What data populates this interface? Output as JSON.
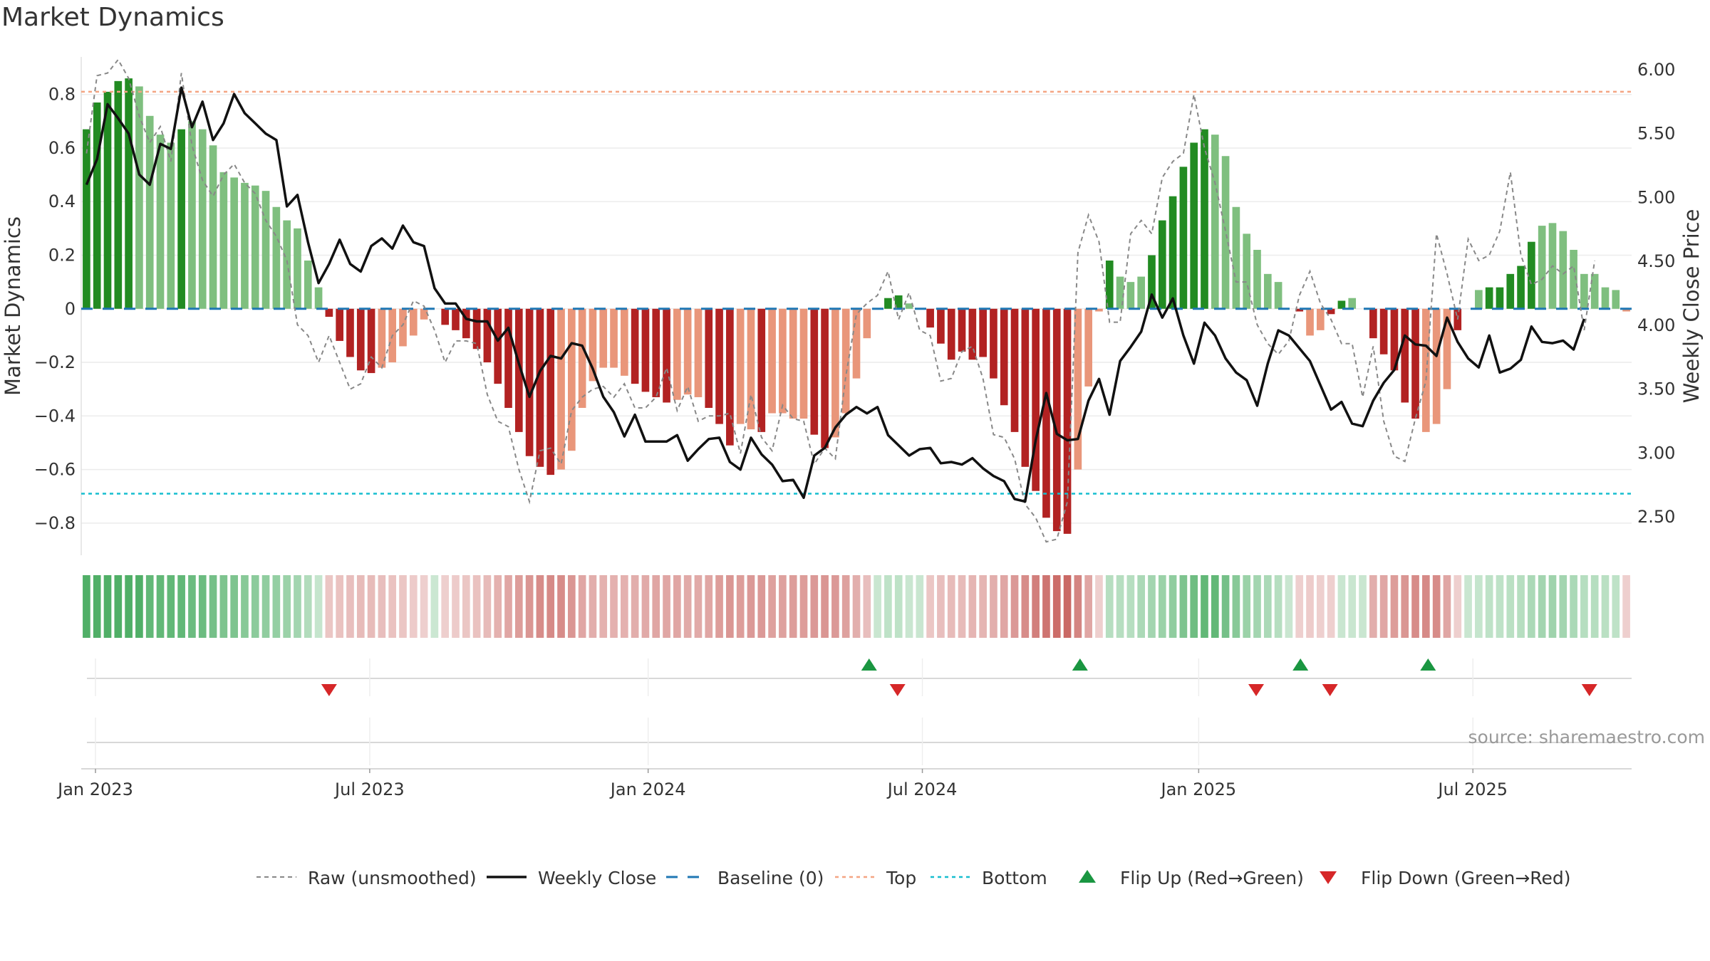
{
  "title": "Market Dynamics",
  "source_note": "source: sharemaestro.com",
  "colors": {
    "strong_green": "#228b22",
    "light_green": "#7fbf7f",
    "strong_red": "#b22222",
    "light_red": "#e9967a",
    "close_line": "#111111",
    "raw_line": "#888888",
    "baseline": "#1f77b4",
    "top_line": "#f4a582",
    "bottom_line": "#17becf",
    "flip_up": "#1a9641",
    "flip_down": "#d62728"
  },
  "chart_data": {
    "type": "bar+line",
    "title": "Market Dynamics",
    "frequency": "weekly",
    "start_week": "2023-01-02",
    "left_axis": {
      "label": "Market Dynamics",
      "ticks": [
        "0.8",
        "0.6",
        "0.4",
        "0.2",
        "0",
        "−0.2",
        "−0.4",
        "−0.6",
        "−0.8"
      ],
      "tick_values": [
        0.8,
        0.6,
        0.4,
        0.2,
        0,
        -0.2,
        -0.4,
        -0.6,
        -0.8
      ],
      "ylim": [
        -0.92,
        0.94
      ]
    },
    "right_axis": {
      "label": "Weekly Close Price",
      "ticks": [
        "6.00",
        "5.50",
        "5.00",
        "4.50",
        "4.00",
        "3.50",
        "3.00",
        "2.50"
      ],
      "tick_values": [
        6.0,
        5.5,
        5.0,
        4.5,
        4.0,
        3.5,
        3.0,
        2.5
      ],
      "ylim": [
        2.2,
        6.1
      ]
    },
    "x_axis": {
      "ticks": [
        "Jan 2023",
        "Jul 2023",
        "Jan 2024",
        "Jul 2024",
        "Jan 2025",
        "Jul 2025"
      ],
      "tick_weeks": [
        0,
        26,
        52.4,
        78.4,
        104.6,
        130.6
      ]
    },
    "reference_lines": {
      "baseline": 0,
      "top": 0.81,
      "bottom": -0.69
    },
    "dynamics": [
      0.67,
      0.77,
      0.81,
      0.85,
      0.86,
      0.83,
      0.72,
      0.65,
      0.62,
      0.67,
      0.7,
      0.67,
      0.61,
      0.51,
      0.49,
      0.47,
      0.46,
      0.44,
      0.38,
      0.33,
      0.3,
      0.18,
      0.08,
      -0.03,
      -0.12,
      -0.18,
      -0.23,
      -0.24,
      -0.22,
      -0.2,
      -0.14,
      -0.1,
      -0.04,
      0,
      -0.06,
      -0.08,
      -0.11,
      -0.15,
      -0.2,
      -0.28,
      -0.37,
      -0.46,
      -0.55,
      -0.59,
      -0.62,
      -0.6,
      -0.53,
      -0.37,
      -0.27,
      -0.22,
      -0.22,
      -0.25,
      -0.28,
      -0.31,
      -0.33,
      -0.35,
      -0.34,
      -0.32,
      -0.33,
      -0.37,
      -0.43,
      -0.51,
      -0.43,
      -0.45,
      -0.46,
      -0.39,
      -0.39,
      -0.41,
      -0.41,
      -0.47,
      -0.52,
      -0.48,
      -0.39,
      -0.26,
      -0.11,
      0,
      0.04,
      0.05,
      0.02,
      0,
      -0.07,
      -0.13,
      -0.19,
      -0.16,
      -0.19,
      -0.18,
      -0.26,
      -0.36,
      -0.46,
      -0.59,
      -0.68,
      -0.78,
      -0.83,
      -0.84,
      -0.6,
      -0.29,
      -0.01,
      0.18,
      0.12,
      0.1,
      0.12,
      0.2,
      0.33,
      0.42,
      0.53,
      0.62,
      0.67,
      0.65,
      0.57,
      0.38,
      0.28,
      0.22,
      0.13,
      0.1,
      0,
      -0.01,
      -0.1,
      -0.08,
      -0.02,
      0.03,
      0.04,
      0,
      -0.11,
      -0.17,
      -0.23,
      -0.35,
      -0.41,
      -0.46,
      -0.43,
      -0.3,
      -0.08,
      0,
      0.07,
      0.08,
      0.08,
      0.13,
      0.16,
      0.25,
      0.31,
      0.32,
      0.29,
      0.22,
      0.13,
      0.13,
      0.08,
      0.07,
      -0.01
    ],
    "strength": [
      2,
      2,
      2,
      2,
      2,
      1,
      1,
      1,
      1,
      2,
      1,
      1,
      1,
      1,
      1,
      1,
      1,
      1,
      1,
      1,
      1,
      1,
      1,
      2,
      2,
      2,
      2,
      2,
      1,
      1,
      1,
      1,
      1,
      1,
      2,
      2,
      2,
      2,
      2,
      2,
      2,
      2,
      2,
      2,
      2,
      1,
      1,
      1,
      1,
      1,
      1,
      1,
      2,
      2,
      2,
      2,
      1,
      1,
      1,
      2,
      2,
      2,
      1,
      1,
      2,
      1,
      1,
      1,
      1,
      2,
      2,
      1,
      1,
      1,
      1,
      1,
      2,
      2,
      1,
      1,
      2,
      2,
      2,
      2,
      2,
      2,
      2,
      2,
      2,
      2,
      2,
      2,
      2,
      2,
      1,
      1,
      1,
      2,
      1,
      1,
      1,
      2,
      2,
      2,
      2,
      2,
      2,
      1,
      1,
      1,
      1,
      1,
      1,
      1,
      1,
      2,
      1,
      1,
      2,
      2,
      1,
      2,
      2,
      2,
      2,
      2,
      2,
      1,
      1,
      1,
      2,
      2,
      1,
      2,
      2,
      2,
      2,
      2,
      1,
      1,
      1,
      1,
      1,
      1,
      1,
      1,
      1
    ],
    "regime_intensity": [
      0.95,
      0.95,
      0.95,
      0.95,
      0.95,
      0.95,
      0.85,
      0.85,
      0.85,
      0.85,
      0.8,
      0.8,
      0.75,
      0.7,
      0.7,
      0.65,
      0.62,
      0.6,
      0.58,
      0.55,
      0.5,
      0.42,
      0.32,
      0.35,
      0.38,
      0.4,
      0.42,
      0.42,
      0.4,
      0.38,
      0.35,
      0.32,
      0.3,
      0.28,
      0.3,
      0.32,
      0.35,
      0.38,
      0.42,
      0.48,
      0.55,
      0.6,
      0.65,
      0.7,
      0.72,
      0.7,
      0.65,
      0.55,
      0.5,
      0.48,
      0.48,
      0.48,
      0.5,
      0.52,
      0.55,
      0.55,
      0.55,
      0.52,
      0.52,
      0.55,
      0.6,
      0.65,
      0.6,
      0.62,
      0.62,
      0.58,
      0.58,
      0.6,
      0.6,
      0.62,
      0.65,
      0.62,
      0.58,
      0.5,
      0.4,
      0.3,
      0.35,
      0.35,
      0.3,
      0.3,
      0.35,
      0.4,
      0.42,
      0.42,
      0.45,
      0.45,
      0.5,
      0.55,
      0.62,
      0.7,
      0.78,
      0.85,
      0.9,
      0.92,
      0.75,
      0.55,
      0.3,
      0.4,
      0.4,
      0.4,
      0.45,
      0.5,
      0.55,
      0.6,
      0.7,
      0.78,
      0.85,
      0.85,
      0.75,
      0.65,
      0.55,
      0.5,
      0.45,
      0.4,
      0.3,
      0.3,
      0.32,
      0.3,
      0.3,
      0.3,
      0.3,
      0.3,
      0.5,
      0.55,
      0.6,
      0.65,
      0.7,
      0.72,
      0.7,
      0.55,
      0.3,
      0.3,
      0.32,
      0.35,
      0.35,
      0.38,
      0.4,
      0.45,
      0.5,
      0.52,
      0.5,
      0.45,
      0.4,
      0.4,
      0.38,
      0.35,
      0.3
    ],
    "weekly_close": [
      5.1,
      5.3,
      5.73,
      5.62,
      5.5,
      5.18,
      5.1,
      5.42,
      5.38,
      5.86,
      5.55,
      5.75,
      5.45,
      5.58,
      5.81,
      5.66,
      5.58,
      5.5,
      5.45,
      4.93,
      5.02,
      4.65,
      4.33,
      4.48,
      4.67,
      4.48,
      4.42,
      4.62,
      4.68,
      4.6,
      4.78,
      4.65,
      4.62,
      4.29,
      4.17,
      4.17,
      4.05,
      4.03,
      4.03,
      3.88,
      3.98,
      3.7,
      3.44,
      3.64,
      3.76,
      3.74,
      3.86,
      3.84,
      3.66,
      3.44,
      3.32,
      3.13,
      3.3,
      3.09,
      3.09,
      3.09,
      3.14,
      2.94,
      3.03,
      3.11,
      3.12,
      2.93,
      2.87,
      3.12,
      2.99,
      2.91,
      2.78,
      2.79,
      2.65,
      2.98,
      3.04,
      3.2,
      3.3,
      3.36,
      3.31,
      3.36,
      3.14,
      3.06,
      2.98,
      3.03,
      3.04,
      2.92,
      2.93,
      2.91,
      2.96,
      2.88,
      2.82,
      2.78,
      2.64,
      2.62,
      3.1,
      3.47,
      3.15,
      3.1,
      3.11,
      3.41,
      3.58,
      3.3,
      3.72,
      3.83,
      3.95,
      4.24,
      4.06,
      4.21,
      3.92,
      3.7,
      4.02,
      3.92,
      3.74,
      3.63,
      3.57,
      3.37,
      3.7,
      3.96,
      3.92,
      3.82,
      3.72,
      3.53,
      3.34,
      3.4,
      3.23,
      3.21,
      3.41,
      3.55,
      3.65,
      3.92,
      3.85,
      3.84,
      3.76,
      4.06,
      3.87,
      3.74,
      3.67,
      3.92,
      3.63,
      3.66,
      3.73,
      3.99,
      3.87,
      3.86,
      3.88,
      3.81,
      4.05
    ],
    "raw": [
      0.58,
      0.87,
      0.88,
      0.93,
      0.86,
      0.72,
      0.62,
      0.68,
      0.55,
      0.88,
      0.61,
      0.48,
      0.42,
      0.5,
      0.54,
      0.47,
      0.43,
      0.33,
      0.27,
      0.18,
      -0.06,
      -0.1,
      -0.2,
      -0.1,
      -0.2,
      -0.3,
      -0.28,
      -0.18,
      -0.22,
      -0.1,
      -0.06,
      0.03,
      0.01,
      -0.08,
      -0.2,
      -0.12,
      -0.12,
      -0.13,
      -0.32,
      -0.42,
      -0.44,
      -0.6,
      -0.72,
      -0.53,
      -0.52,
      -0.58,
      -0.38,
      -0.33,
      -0.3,
      -0.29,
      -0.33,
      -0.28,
      -0.37,
      -0.37,
      -0.33,
      -0.22,
      -0.38,
      -0.29,
      -0.42,
      -0.4,
      -0.4,
      -0.39,
      -0.54,
      -0.32,
      -0.48,
      -0.53,
      -0.36,
      -0.41,
      -0.42,
      -0.58,
      -0.52,
      -0.56,
      -0.25,
      -0.02,
      0.02,
      0.05,
      0.14,
      -0.04,
      0.06,
      -0.08,
      -0.1,
      -0.27,
      -0.26,
      -0.16,
      -0.14,
      -0.26,
      -0.47,
      -0.48,
      -0.56,
      -0.73,
      -0.78,
      -0.87,
      -0.86,
      -0.72,
      0.21,
      0.35,
      0.25,
      -0.05,
      -0.05,
      0.28,
      0.33,
      0.28,
      0.49,
      0.55,
      0.58,
      0.8,
      0.6,
      0.47,
      0.29,
      0.1,
      0.1,
      -0.06,
      -0.13,
      -0.17,
      -0.12,
      0.05,
      0.14,
      0.02,
      -0.04,
      -0.13,
      -0.13,
      -0.33,
      -0.14,
      -0.42,
      -0.55,
      -0.57,
      -0.41,
      -0.27,
      0.28,
      0.13,
      -0.04,
      0.26,
      0.18,
      0.2,
      0.29,
      0.51,
      0.2,
      0.09,
      0.11,
      0.16,
      0.13,
      0.16,
      -0.08,
      0.18
    ],
    "flip_up_weeks": [
      74.2,
      94.2,
      115.1,
      127.2
    ],
    "flip_down_weeks": [
      23,
      76.9,
      110.9,
      117.9,
      142.5
    ],
    "legend": [
      {
        "key": "raw",
        "label": "Raw (unsmoothed)"
      },
      {
        "key": "close",
        "label": "Weekly Close"
      },
      {
        "key": "baseline",
        "label": "Baseline (0)"
      },
      {
        "key": "top",
        "label": "Top"
      },
      {
        "key": "bottom",
        "label": "Bottom"
      },
      {
        "key": "flip_up",
        "label": "Flip Up (Red→Green)"
      },
      {
        "key": "flip_down",
        "label": "Flip Down (Green→Red)"
      }
    ]
  }
}
